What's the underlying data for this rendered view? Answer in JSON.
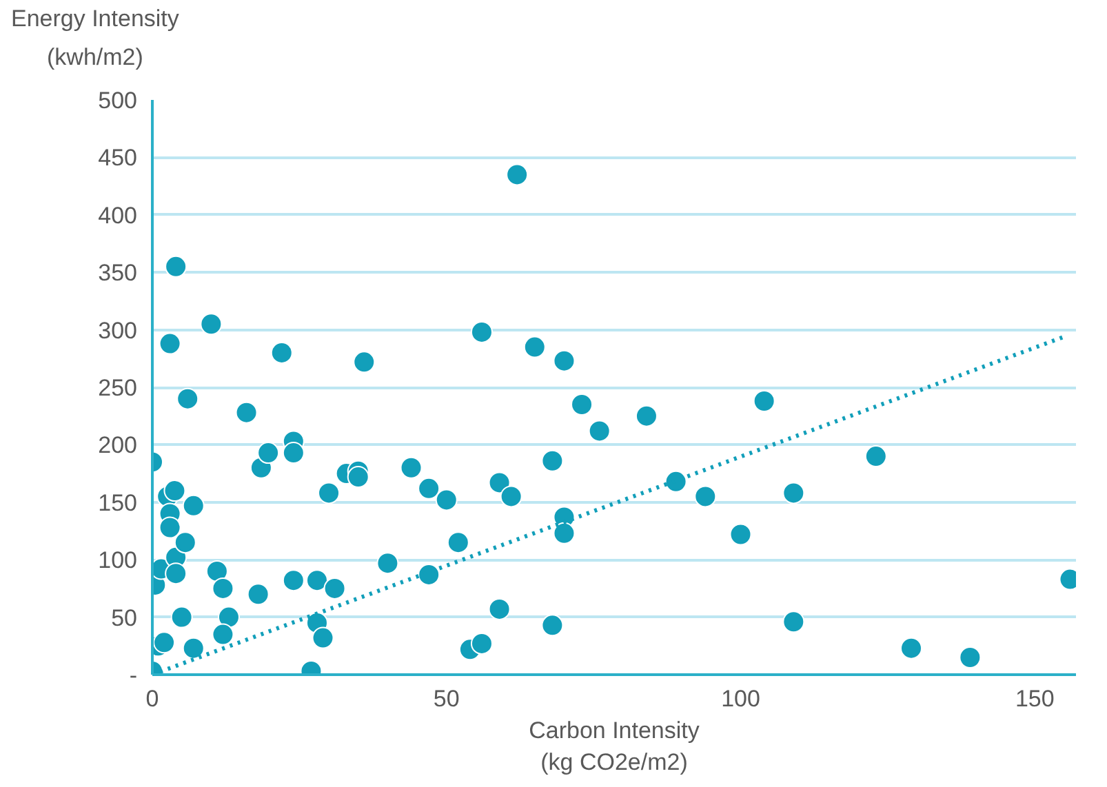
{
  "chart_data": {
    "type": "scatter",
    "xlabel": "Carbon Intensity\n(kg CO2e/m2)",
    "ylabel": "Energy Intensity\n(kwh/m2)",
    "xlim": [
      0,
      157
    ],
    "ylim": [
      0,
      500
    ],
    "xticks": [
      0,
      50,
      100,
      150
    ],
    "yticks": [
      {
        "value": 0,
        "label": "-"
      },
      50,
      100,
      150,
      200,
      250,
      300,
      350,
      400,
      450,
      500
    ],
    "grid": "y",
    "series": [
      {
        "color": "#129fba",
        "marker": "circle",
        "x": [
          0,
          0.5,
          1.5,
          1,
          2,
          0,
          3,
          4,
          2.6,
          3.8,
          3,
          3,
          4,
          4,
          5.6,
          6,
          7,
          10,
          5,
          7,
          11,
          12,
          13,
          12,
          16,
          18.5,
          19.7,
          18,
          22,
          24,
          24,
          24,
          28,
          28,
          29,
          27,
          30,
          31,
          33,
          35,
          35,
          36,
          40,
          44,
          47,
          47,
          50,
          52,
          54,
          56,
          56,
          59,
          59,
          61,
          62,
          65,
          68,
          68,
          70,
          70,
          70,
          73,
          76,
          84,
          89,
          94,
          100,
          104,
          109,
          109,
          123,
          129,
          139,
          156
        ],
        "values": [
          185,
          78,
          92,
          25,
          28,
          3,
          288,
          355,
          155,
          160,
          140,
          128,
          102,
          88,
          115,
          240,
          147,
          305,
          50,
          23,
          90,
          75,
          50,
          35,
          228,
          180,
          193,
          70,
          280,
          203,
          193,
          82,
          82,
          45,
          32,
          3,
          158,
          75,
          175,
          177,
          172,
          272,
          97,
          180,
          162,
          87,
          152,
          115,
          22,
          27,
          298,
          57,
          167,
          155,
          435,
          285,
          186,
          43,
          273,
          137,
          123,
          235,
          212,
          225,
          168,
          155,
          122,
          238,
          158,
          46,
          190,
          23,
          15,
          83
        ]
      },
      {
        "type": "line",
        "line_style": "dotted",
        "color": "#129fba",
        "x": [
          0,
          155
        ],
        "values": [
          0,
          294
        ]
      }
    ]
  }
}
